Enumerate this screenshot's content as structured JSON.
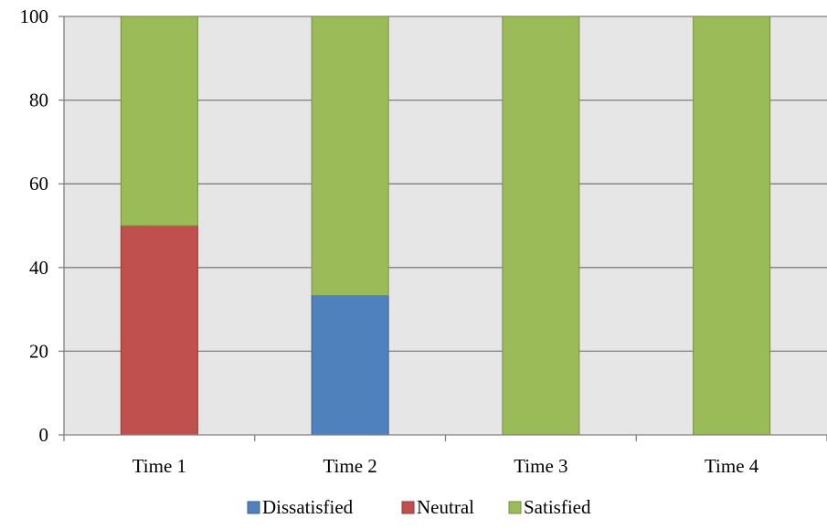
{
  "chart_data": {
    "type": "bar",
    "stacked": true,
    "title": "",
    "xlabel": "",
    "ylabel": "",
    "categories": [
      "Time 1",
      "Time 2",
      "Time 3",
      "Time 4"
    ],
    "series": [
      {
        "name": "Dissatisfied",
        "values": [
          0,
          33.3,
          0,
          0
        ],
        "color": "#4f81bd"
      },
      {
        "name": "Neutral",
        "values": [
          50,
          0,
          0,
          0
        ],
        "color": "#c0504d"
      },
      {
        "name": "Satisfied",
        "values": [
          50,
          66.7,
          100,
          100
        ],
        "color": "#9bbb59"
      }
    ],
    "ylim": [
      0,
      100
    ],
    "yticks": [
      "0",
      "20",
      "40",
      "60",
      "80",
      "100"
    ],
    "grid": true,
    "plot_background": "#e6e6e6",
    "legend_position": "bottom"
  }
}
